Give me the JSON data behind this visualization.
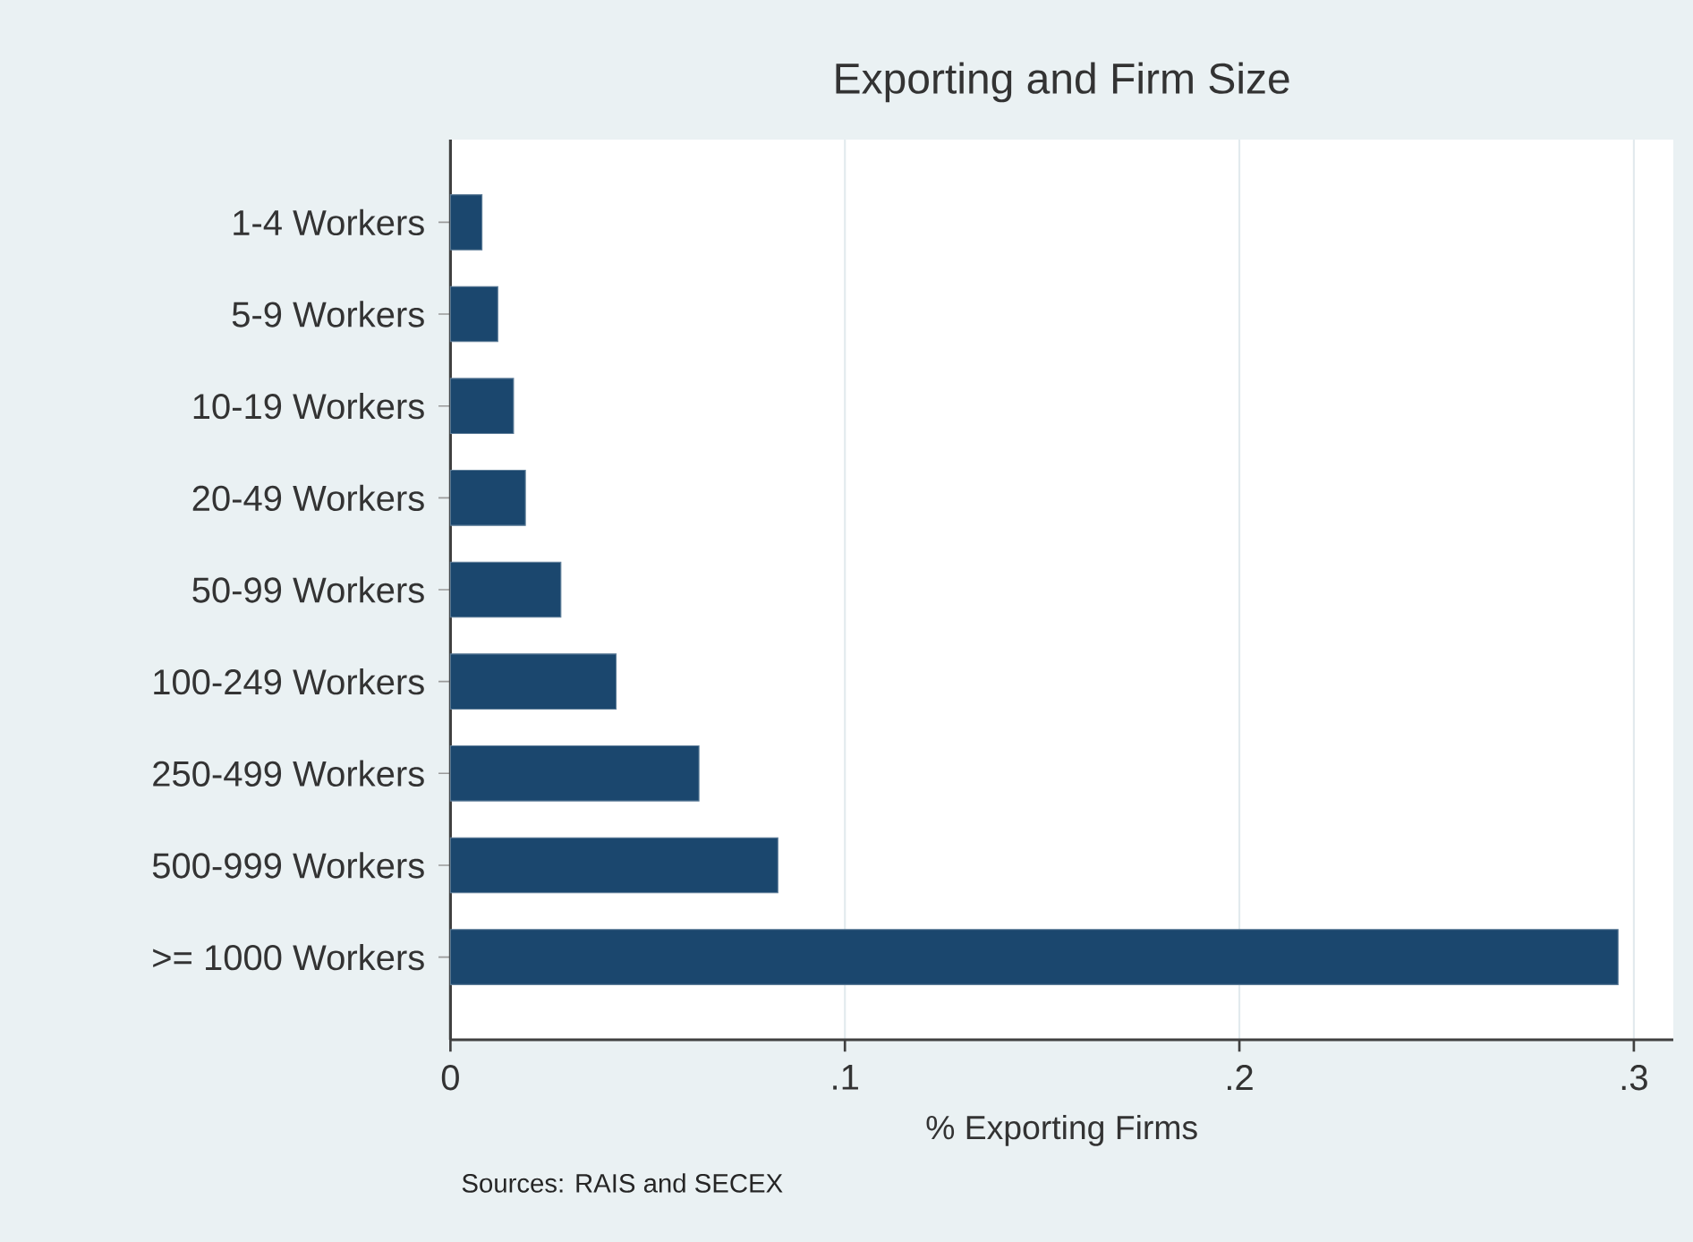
{
  "chart_data": {
    "type": "bar",
    "orientation": "horizontal",
    "title": "Exporting and Firm Size",
    "xlabel": "% Exporting Firms",
    "categories": [
      "1-4 Workers",
      "5-9 Workers",
      "10-19 Workers",
      "20-49 Workers",
      "50-99 Workers",
      "100-249 Workers",
      "250-499 Workers",
      "500-999 Workers",
      ">= 1000 Workers"
    ],
    "values": [
      0.008,
      0.012,
      0.016,
      0.019,
      0.028,
      0.042,
      0.063,
      0.083,
      0.296
    ],
    "color": "#1b476e",
    "xlim": [
      0,
      0.31
    ],
    "xticks": [
      0,
      {
        "value": 0.1,
        "label": ".1"
      },
      {
        "value": 0.2,
        "label": ".2"
      },
      {
        "value": 0.3,
        "label": ".3"
      }
    ],
    "grid": "x",
    "annotations": [
      "Sources: RAIS and SECEX"
    ]
  }
}
